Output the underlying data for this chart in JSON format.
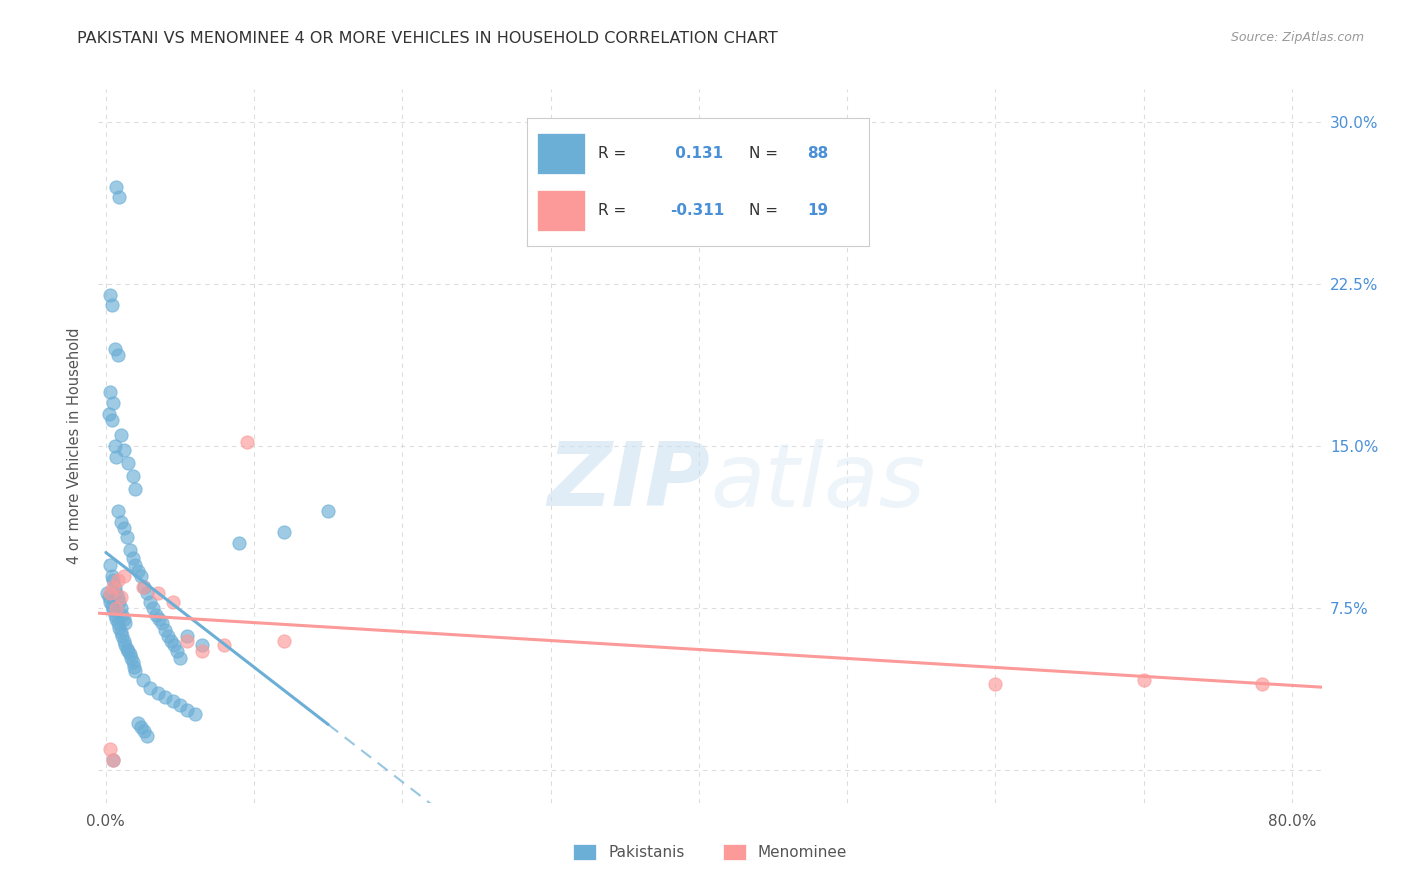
{
  "title": "PAKISTANI VS MENOMINEE 4 OR MORE VEHICLES IN HOUSEHOLD CORRELATION CHART",
  "source": "Source: ZipAtlas.com",
  "ylabel": "4 or more Vehicles in Household",
  "xlim": [
    -0.005,
    0.82
  ],
  "ylim": [
    -0.015,
    0.315
  ],
  "pakistani_color": "#6baed6",
  "menominee_color": "#fb9a99",
  "pakistani_r": 0.131,
  "pakistani_n": 88,
  "menominee_r": -0.311,
  "menominee_n": 19,
  "legend_label_1": "Pakistanis",
  "legend_label_2": "Menominee",
  "pakistani_x": [
    0.007,
    0.009,
    0.003,
    0.004,
    0.006,
    0.008,
    0.005,
    0.002,
    0.003,
    0.004,
    0.006,
    0.007,
    0.01,
    0.012,
    0.015,
    0.018,
    0.02,
    0.008,
    0.01,
    0.012,
    0.014,
    0.016,
    0.018,
    0.02,
    0.022,
    0.024,
    0.026,
    0.028,
    0.03,
    0.032,
    0.034,
    0.036,
    0.038,
    0.04,
    0.042,
    0.044,
    0.046,
    0.048,
    0.05,
    0.003,
    0.004,
    0.005,
    0.006,
    0.007,
    0.008,
    0.009,
    0.01,
    0.011,
    0.012,
    0.013,
    0.001,
    0.002,
    0.003,
    0.004,
    0.005,
    0.006,
    0.007,
    0.008,
    0.009,
    0.01,
    0.011,
    0.012,
    0.013,
    0.014,
    0.015,
    0.016,
    0.017,
    0.018,
    0.019,
    0.02,
    0.025,
    0.03,
    0.035,
    0.04,
    0.045,
    0.05,
    0.055,
    0.06,
    0.09,
    0.12,
    0.15,
    0.055,
    0.065,
    0.022,
    0.024,
    0.026,
    0.028,
    0.005
  ],
  "pakistani_y": [
    0.27,
    0.265,
    0.22,
    0.215,
    0.195,
    0.192,
    0.17,
    0.165,
    0.175,
    0.162,
    0.15,
    0.145,
    0.155,
    0.148,
    0.142,
    0.136,
    0.13,
    0.12,
    0.115,
    0.112,
    0.108,
    0.102,
    0.098,
    0.095,
    0.092,
    0.09,
    0.085,
    0.082,
    0.078,
    0.075,
    0.072,
    0.07,
    0.068,
    0.065,
    0.062,
    0.06,
    0.058,
    0.055,
    0.052,
    0.095,
    0.09,
    0.088,
    0.085,
    0.082,
    0.08,
    0.078,
    0.075,
    0.072,
    0.07,
    0.068,
    0.082,
    0.08,
    0.078,
    0.076,
    0.074,
    0.072,
    0.07,
    0.068,
    0.066,
    0.064,
    0.062,
    0.06,
    0.058,
    0.056,
    0.055,
    0.054,
    0.052,
    0.05,
    0.048,
    0.046,
    0.042,
    0.038,
    0.036,
    0.034,
    0.032,
    0.03,
    0.028,
    0.026,
    0.105,
    0.11,
    0.12,
    0.062,
    0.058,
    0.022,
    0.02,
    0.018,
    0.016,
    0.005
  ],
  "menominee_x": [
    0.003,
    0.005,
    0.007,
    0.01,
    0.003,
    0.005,
    0.008,
    0.012,
    0.025,
    0.035,
    0.045,
    0.055,
    0.065,
    0.08,
    0.095,
    0.12,
    0.6,
    0.7,
    0.78
  ],
  "menominee_y": [
    0.01,
    0.005,
    0.075,
    0.08,
    0.082,
    0.085,
    0.088,
    0.09,
    0.085,
    0.082,
    0.078,
    0.06,
    0.055,
    0.058,
    0.152,
    0.06,
    0.04,
    0.042,
    0.04
  ],
  "watermark_zip": "ZIP",
  "watermark_atlas": "atlas",
  "background_color": "#ffffff",
  "grid_color": "#dddddd",
  "grid_style": "--"
}
